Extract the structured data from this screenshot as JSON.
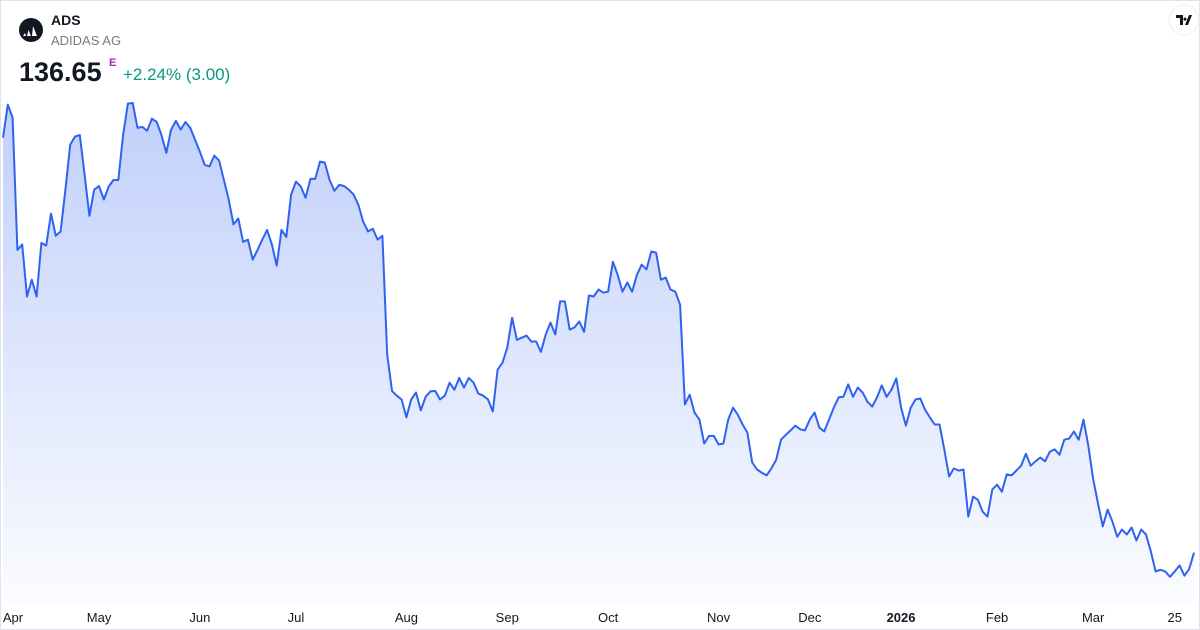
{
  "header": {
    "symbol": "ADS",
    "name": "ADIDAS AG",
    "price": "136.65",
    "price_marker": "E",
    "change": "+2.24% (3.00)"
  },
  "chart_data": {
    "type": "area",
    "color": "#2f62f0",
    "ylim": [
      127,
      222
    ],
    "xticks": [
      {
        "value": 2,
        "label": "Apr"
      },
      {
        "value": 20,
        "label": "May"
      },
      {
        "value": 41,
        "label": "Jun"
      },
      {
        "value": 61,
        "label": "Jul"
      },
      {
        "value": 84,
        "label": "Aug"
      },
      {
        "value": 105,
        "label": "Sep"
      },
      {
        "value": 126,
        "label": "Oct"
      },
      {
        "value": 149,
        "label": "Nov"
      },
      {
        "value": 168,
        "label": "Dec"
      },
      {
        "value": 187,
        "label": "2026"
      },
      {
        "value": 207,
        "label": "Feb"
      },
      {
        "value": 227,
        "label": "Mar"
      },
      {
        "value": 244,
        "label": "25"
      }
    ],
    "values": [
      213.2,
      219.3,
      216.9,
      192.5,
      193.5,
      183.9,
      187.0,
      183.9,
      193.8,
      193.3,
      199.2,
      195.1,
      195.9,
      203.6,
      211.9,
      213.4,
      213.7,
      206.4,
      198.8,
      203.6,
      204.3,
      201.8,
      204.2,
      205.4,
      205.4,
      213.7,
      219.5,
      219.6,
      215.0,
      215.2,
      214.5,
      216.7,
      216.1,
      213.7,
      210.4,
      214.7,
      216.3,
      214.7,
      216.1,
      215.0,
      212.8,
      210.6,
      208.2,
      207.9,
      209.9,
      209.0,
      205.4,
      201.8,
      197.2,
      198.3,
      194.0,
      194.4,
      190.7,
      192.5,
      194.4,
      196.2,
      193.5,
      189.6,
      196.2,
      194.9,
      202.7,
      205.1,
      204.2,
      202.1,
      205.6,
      205.6,
      208.8,
      208.6,
      205.4,
      203.4,
      204.5,
      204.3,
      203.6,
      202.7,
      200.8,
      197.7,
      195.9,
      196.4,
      194.4,
      195.1,
      173.2,
      166.5,
      165.6,
      164.9,
      161.6,
      164.9,
      166.2,
      162.9,
      165.4,
      166.4,
      166.5,
      164.9,
      165.6,
      168.0,
      166.7,
      168.9,
      167.1,
      168.9,
      168.0,
      166.0,
      165.6,
      164.9,
      162.7,
      170.4,
      171.7,
      174.5,
      180.0,
      175.9,
      176.3,
      176.7,
      175.6,
      175.6,
      173.7,
      176.9,
      179.1,
      176.9,
      183.0,
      183.0,
      177.8,
      178.2,
      179.3,
      177.4,
      184.1,
      183.9,
      185.2,
      184.6,
      184.8,
      190.3,
      187.9,
      184.8,
      186.5,
      184.8,
      187.9,
      189.8,
      188.9,
      192.2,
      192.0,
      187.0,
      187.4,
      185.2,
      184.8,
      182.4,
      164.0,
      165.8,
      162.5,
      161.2,
      156.8,
      158.2,
      158.2,
      156.6,
      156.8,
      161.2,
      163.4,
      162.1,
      160.3,
      158.8,
      153.3,
      152.0,
      151.4,
      150.9,
      152.2,
      153.8,
      157.5,
      158.4,
      159.2,
      160.1,
      159.4,
      159.2,
      161.2,
      162.5,
      159.7,
      159.0,
      161.2,
      163.4,
      165.3,
      165.4,
      167.7,
      165.4,
      167.1,
      166.2,
      164.5,
      163.6,
      165.3,
      167.5,
      165.4,
      166.7,
      168.8,
      163.4,
      160.1,
      163.4,
      164.9,
      165.1,
      163.0,
      161.6,
      160.3,
      160.3,
      155.7,
      150.7,
      152.2,
      151.8,
      152.0,
      143.3,
      147.0,
      146.4,
      144.2,
      143.3,
      148.3,
      149.2,
      147.9,
      151.1,
      150.9,
      151.8,
      152.7,
      154.9,
      152.7,
      153.5,
      154.2,
      153.5,
      155.3,
      155.7,
      154.7,
      157.5,
      157.7,
      159.0,
      157.5,
      161.2,
      156.4,
      150.3,
      145.7,
      141.5,
      144.6,
      142.4,
      139.6,
      140.9,
      140.0,
      141.3,
      138.9,
      140.9,
      140.0,
      136.9,
      133.2,
      133.5,
      133.2,
      132.2,
      133.2,
      134.3,
      132.4,
      133.65,
      136.65
    ]
  }
}
